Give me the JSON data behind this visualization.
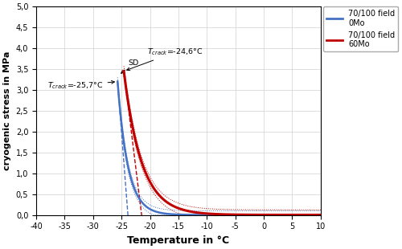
{
  "xlabel": "Temperature in °C",
  "ylabel": "cryogenic stress in MPa",
  "xlim": [
    -40,
    10
  ],
  "ylim": [
    0,
    5.0
  ],
  "xticks": [
    -40,
    -35,
    -30,
    -25,
    -20,
    -15,
    -10,
    -5,
    0,
    5,
    10
  ],
  "yticks": [
    0.0,
    0.5,
    1.0,
    1.5,
    2.0,
    2.5,
    3.0,
    3.5,
    4.0,
    4.5,
    5.0
  ],
  "blue_color": "#4472C4",
  "red_color": "#C00000",
  "blue_T_crack": -25.7,
  "blue_sigma_crack": 3.2,
  "blue_T_f": -23.8,
  "blue_k": 0.55,
  "red_T_crack": -24.6,
  "red_sigma_crack": 3.45,
  "red_T_f": -20.0,
  "red_k": 0.32,
  "blue_sd": 0.1,
  "red_sd": 0.12,
  "legend_blue": "70/100 field\n0Mo",
  "legend_red": "70/100 field\n60Mo"
}
